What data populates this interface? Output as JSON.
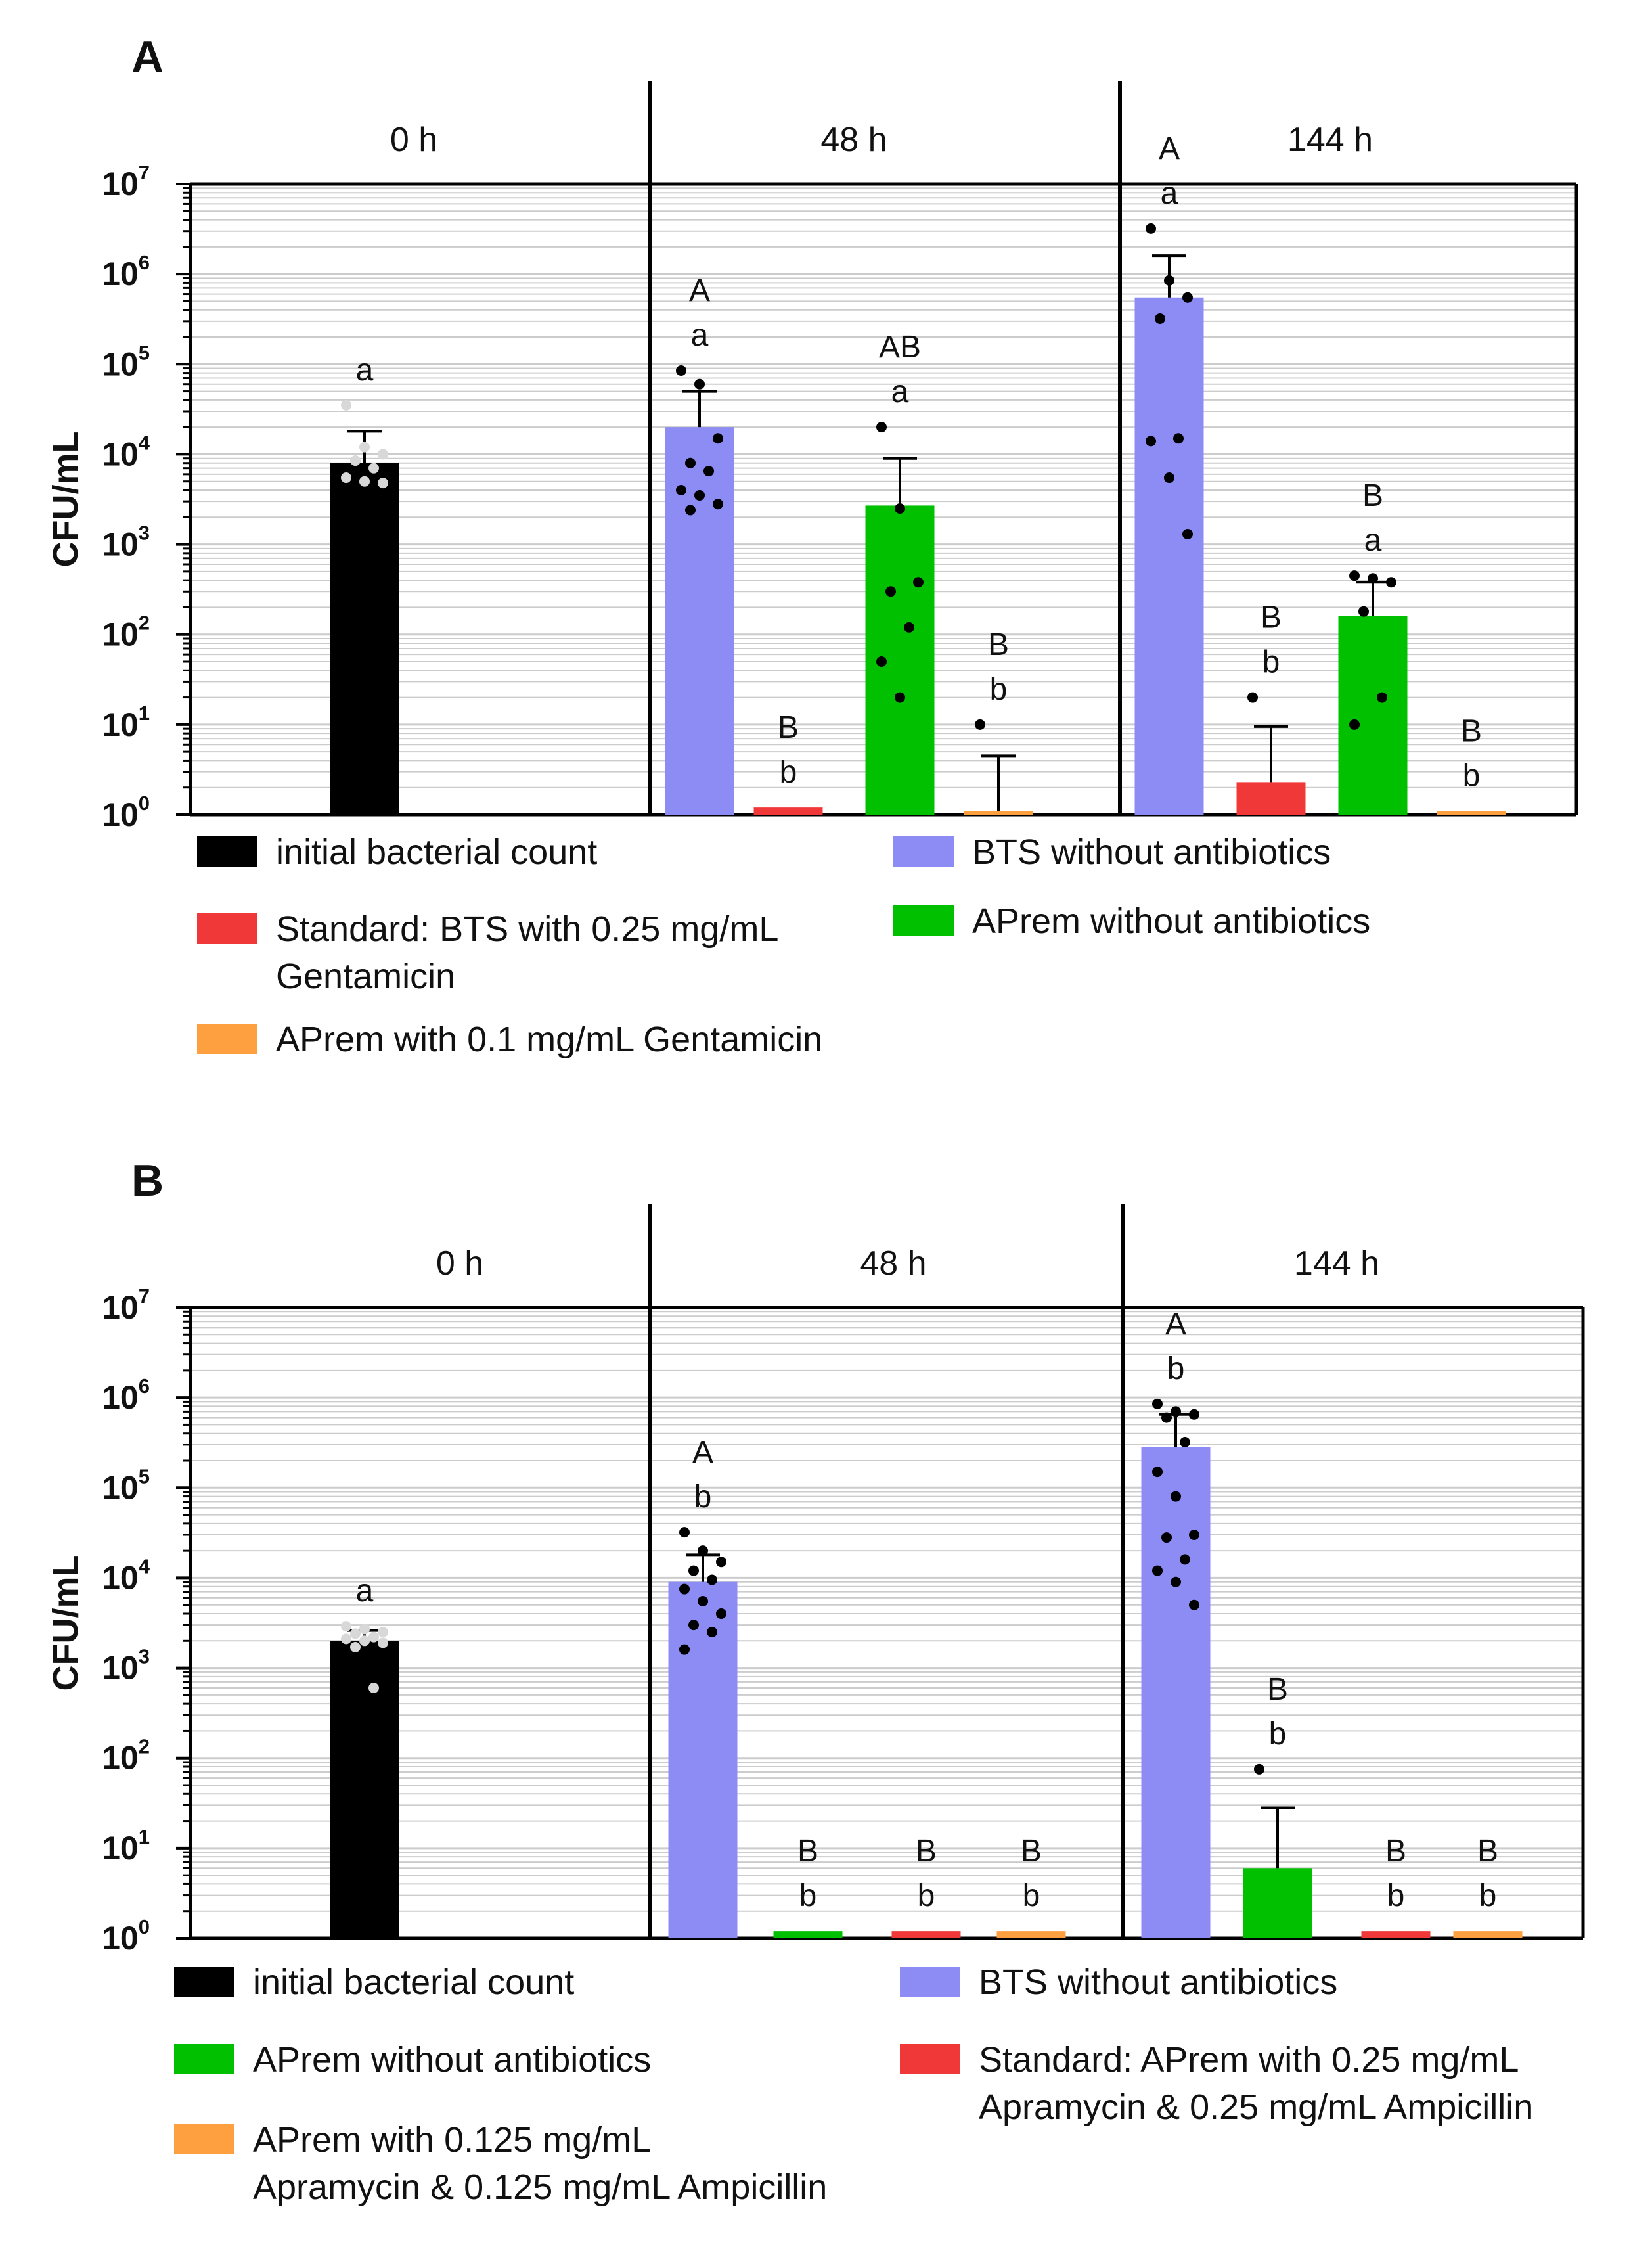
{
  "colors": {
    "initial": "#000000",
    "bts": "#8c8cf4",
    "standard": "#f03838",
    "aprem": "#00c000",
    "aprem_low": "#ffa040",
    "grid": "#cccccc",
    "axis": "#000000"
  },
  "chart_data": [
    {
      "panel": "A",
      "type": "bar",
      "ylabel": "CFU/mL",
      "yscale": "log10",
      "ylim": [
        1,
        10000000
      ],
      "ytick_base": "10",
      "ytick_exponents": [
        "0",
        "1",
        "2",
        "3",
        "4",
        "5",
        "6",
        "7"
      ],
      "groups": [
        {
          "label": "0 h",
          "bars": [
            {
              "series": "initial",
              "value": 8000,
              "error_upper": 18000,
              "points": [
                35000,
                12000,
                10000,
                8500,
                7000,
                5500,
                5000,
                4800
              ],
              "letters": [
                "a"
              ]
            }
          ]
        },
        {
          "label": "48 h",
          "bars": [
            {
              "series": "bts",
              "value": 20000,
              "error_upper": 50000,
              "points": [
                85000,
                60000,
                15000,
                8000,
                6500,
                4000,
                3500,
                2800,
                2400
              ],
              "letters": [
                "A",
                "a"
              ]
            },
            {
              "series": "standard",
              "value": 1.2,
              "error_upper": null,
              "points": [],
              "letters": [
                "B",
                "b"
              ]
            },
            {
              "series": "aprem",
              "value": 2700,
              "error_upper": 9000,
              "points": [
                20000,
                2500,
                380,
                300,
                120,
                50,
                20
              ],
              "letters": [
                "AB",
                "a"
              ]
            },
            {
              "series": "aprem_low",
              "value": 1.1,
              "error_upper": 4.5,
              "points": [
                10
              ],
              "letters": [
                "B",
                "b"
              ]
            }
          ]
        },
        {
          "label": "144 h",
          "bars": [
            {
              "series": "bts",
              "value": 550000,
              "error_upper": 1600000,
              "points": [
                3200000,
                850000,
                550000,
                320000,
                15000,
                14000,
                5500,
                1300
              ],
              "letters": [
                "A",
                "a"
              ]
            },
            {
              "series": "standard",
              "value": 2.3,
              "error_upper": 9.5,
              "points": [
                20
              ],
              "letters": [
                "B",
                "b"
              ]
            },
            {
              "series": "aprem",
              "value": 160,
              "error_upper": 380,
              "points": [
                450,
                420,
                380,
                180,
                20,
                10
              ],
              "letters": [
                "B",
                "a"
              ]
            },
            {
              "series": "aprem_low",
              "value": 1.1,
              "error_upper": null,
              "points": [],
              "letters": [
                "B",
                "b"
              ]
            }
          ]
        }
      ],
      "legend": [
        {
          "series": "initial",
          "lines": [
            "initial bacterial count"
          ]
        },
        {
          "series": "bts",
          "lines": [
            "BTS without antibiotics"
          ]
        },
        {
          "series": "standard",
          "lines": [
            "Standard: BTS with 0.25 mg/mL",
            "Gentamicin"
          ]
        },
        {
          "series": "aprem",
          "lines": [
            "APrem without antibiotics"
          ]
        },
        {
          "series": "aprem_low",
          "lines": [
            "APrem with 0.1 mg/mL Gentamicin"
          ]
        }
      ]
    },
    {
      "panel": "B",
      "type": "bar",
      "ylabel": "CFU/mL",
      "yscale": "log10",
      "ylim": [
        1,
        10000000
      ],
      "ytick_base": "10",
      "ytick_exponents": [
        "0",
        "1",
        "2",
        "3",
        "4",
        "5",
        "6",
        "7"
      ],
      "groups": [
        {
          "label": "0 h",
          "bars": [
            {
              "series": "initial",
              "value": 2000,
              "error_upper": 2600,
              "points": [
                2900,
                2700,
                2500,
                2400,
                2200,
                2100,
                2000,
                1900,
                1700,
                600
              ],
              "letters": [
                "a"
              ]
            }
          ]
        },
        {
          "label": "48 h",
          "bars": [
            {
              "series": "bts",
              "value": 9000,
              "error_upper": 18000,
              "points": [
                32000,
                20000,
                15000,
                12000,
                9500,
                7500,
                5500,
                4000,
                3000,
                2500,
                1600
              ],
              "letters": [
                "A",
                "b"
              ]
            },
            {
              "series": "aprem",
              "value": 1.2,
              "error_upper": null,
              "points": [],
              "letters": [
                "B",
                "b"
              ]
            },
            {
              "series": "standard",
              "value": 1.2,
              "error_upper": null,
              "points": [],
              "letters": [
                "B",
                "b"
              ]
            },
            {
              "series": "aprem_low",
              "value": 1.2,
              "error_upper": null,
              "points": [],
              "letters": [
                "B",
                "b"
              ]
            }
          ]
        },
        {
          "label": "144 h",
          "bars": [
            {
              "series": "bts",
              "value": 280000,
              "error_upper": 650000,
              "points": [
                850000,
                700000,
                650000,
                600000,
                320000,
                150000,
                80000,
                30000,
                28000,
                16000,
                12000,
                9000,
                5000
              ],
              "letters": [
                "A",
                "b"
              ]
            },
            {
              "series": "aprem",
              "value": 6,
              "error_upper": 28,
              "points": [
                75
              ],
              "letters": [
                "B",
                "b"
              ]
            },
            {
              "series": "standard",
              "value": 1.2,
              "error_upper": null,
              "points": [],
              "letters": [
                "B",
                "b"
              ]
            },
            {
              "series": "aprem_low",
              "value": 1.2,
              "error_upper": null,
              "points": [],
              "letters": [
                "B",
                "b"
              ]
            }
          ]
        }
      ],
      "legend": [
        {
          "series": "initial",
          "lines": [
            "initial bacterial count"
          ]
        },
        {
          "series": "bts",
          "lines": [
            "BTS without antibiotics"
          ]
        },
        {
          "series": "aprem",
          "lines": [
            "APrem without antibiotics"
          ]
        },
        {
          "series": "standard",
          "lines": [
            "Standard: APrem with 0.25 mg/mL",
            "Apramycin & 0.25 mg/mL Ampicillin"
          ]
        },
        {
          "series": "aprem_low",
          "lines": [
            "APrem with 0.125 mg/mL",
            "Apramycin & 0.125 mg/mL Ampicillin"
          ]
        }
      ]
    }
  ]
}
